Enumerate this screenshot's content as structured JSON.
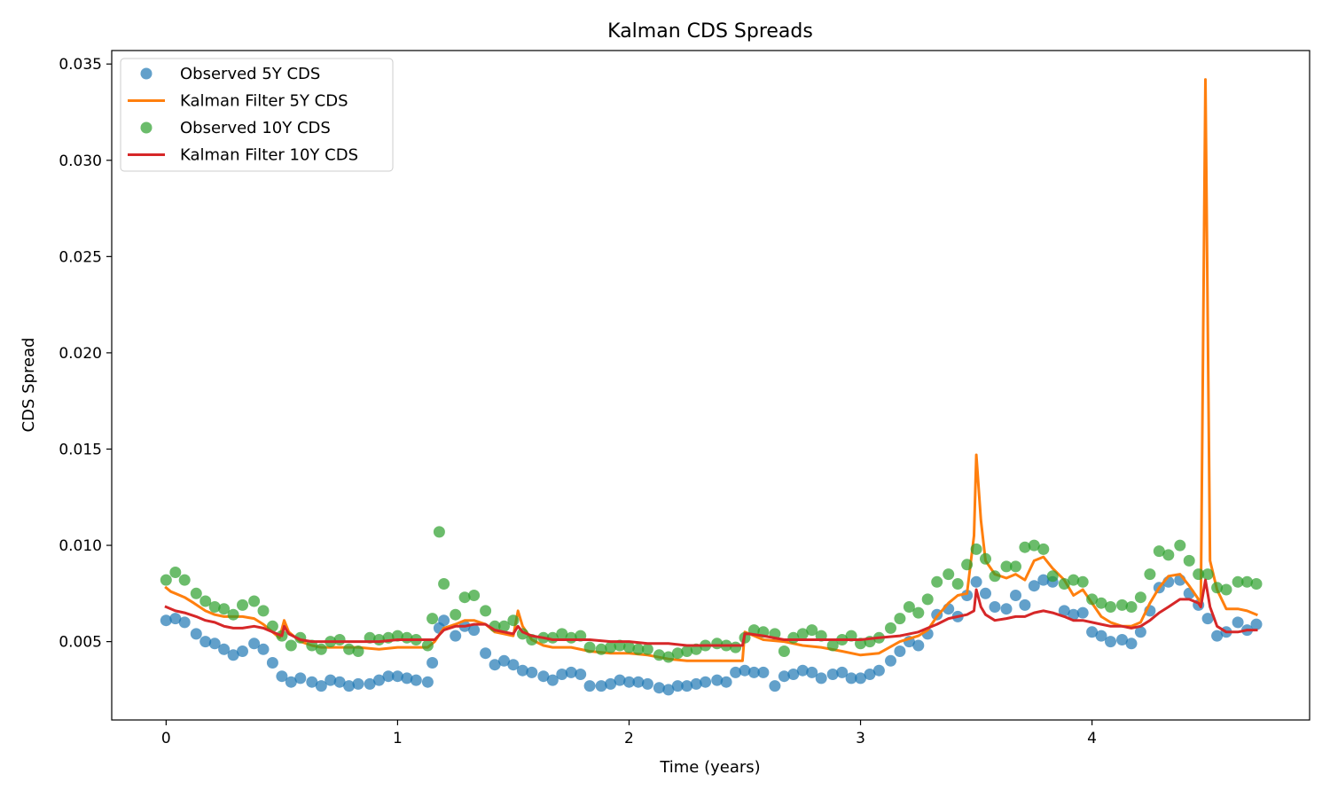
{
  "chart_data": {
    "type": "line",
    "title": "Kalman CDS Spreads",
    "xlabel": "Time (years)",
    "ylabel": "CDS Spread",
    "xlim": [
      -0.235,
      4.94
    ],
    "ylim": [
      0.00093,
      0.0357
    ],
    "xticks": [
      0,
      1,
      2,
      3,
      4
    ],
    "xtick_labels": [
      "0",
      "1",
      "2",
      "3",
      "4"
    ],
    "yticks": [
      0.005,
      0.01,
      0.015,
      0.02,
      0.025,
      0.03,
      0.035
    ],
    "ytick_labels": [
      "0.005",
      "0.010",
      "0.015",
      "0.020",
      "0.025",
      "0.030",
      "0.035"
    ],
    "grid": false,
    "legend_position": "upper-left",
    "series": [
      {
        "name": "Observed 5Y CDS",
        "kind": "scatter",
        "color": "#1f77b4",
        "x": [
          0.0,
          0.04,
          0.08,
          0.13,
          0.17,
          0.21,
          0.25,
          0.29,
          0.33,
          0.38,
          0.42,
          0.46,
          0.5,
          0.54,
          0.58,
          0.63,
          0.67,
          0.71,
          0.75,
          0.79,
          0.83,
          0.88,
          0.92,
          0.96,
          1.0,
          1.04,
          1.08,
          1.13,
          1.15,
          1.18,
          1.2,
          1.25,
          1.29,
          1.33,
          1.38,
          1.42,
          1.46,
          1.5,
          1.54,
          1.58,
          1.63,
          1.67,
          1.71,
          1.75,
          1.79,
          1.83,
          1.88,
          1.92,
          1.96,
          2.0,
          2.04,
          2.08,
          2.13,
          2.17,
          2.21,
          2.25,
          2.29,
          2.33,
          2.38,
          2.42,
          2.46,
          2.5,
          2.54,
          2.58,
          2.63,
          2.67,
          2.71,
          2.75,
          2.79,
          2.83,
          2.88,
          2.92,
          2.96,
          3.0,
          3.04,
          3.08,
          3.13,
          3.17,
          3.21,
          3.25,
          3.29,
          3.33,
          3.38,
          3.42,
          3.46,
          3.5,
          3.54,
          3.58,
          3.63,
          3.67,
          3.71,
          3.75,
          3.79,
          3.83,
          3.88,
          3.92,
          3.96,
          4.0,
          4.04,
          4.08,
          4.13,
          4.17,
          4.21,
          4.25,
          4.29,
          4.33,
          4.38,
          4.42,
          4.46,
          4.5,
          4.54,
          4.58,
          4.63,
          4.67,
          4.71
        ],
        "y": [
          0.0061,
          0.0062,
          0.006,
          0.0054,
          0.005,
          0.0049,
          0.0046,
          0.0043,
          0.0045,
          0.0049,
          0.0046,
          0.0039,
          0.0032,
          0.0029,
          0.0031,
          0.0029,
          0.0027,
          0.003,
          0.0029,
          0.0027,
          0.0028,
          0.0028,
          0.003,
          0.0032,
          0.0032,
          0.0031,
          0.003,
          0.0029,
          0.0039,
          0.0057,
          0.0061,
          0.0053,
          0.0058,
          0.0056,
          0.0044,
          0.0038,
          0.004,
          0.0038,
          0.0035,
          0.0034,
          0.0032,
          0.003,
          0.0033,
          0.0034,
          0.0033,
          0.0027,
          0.0027,
          0.0028,
          0.003,
          0.0029,
          0.0029,
          0.0028,
          0.0026,
          0.0025,
          0.0027,
          0.0027,
          0.0028,
          0.0029,
          0.003,
          0.0029,
          0.0034,
          0.0035,
          0.0034,
          0.0034,
          0.0027,
          0.0032,
          0.0033,
          0.0035,
          0.0034,
          0.0031,
          0.0033,
          0.0034,
          0.0031,
          0.0031,
          0.0033,
          0.0035,
          0.004,
          0.0045,
          0.005,
          0.0048,
          0.0054,
          0.0064,
          0.0067,
          0.0063,
          0.0074,
          0.0081,
          0.0075,
          0.0068,
          0.0067,
          0.0074,
          0.0069,
          0.0079,
          0.0082,
          0.0081,
          0.0066,
          0.0064,
          0.0065,
          0.0055,
          0.0053,
          0.005,
          0.0051,
          0.0049,
          0.0055,
          0.0066,
          0.0078,
          0.0081,
          0.0082,
          0.0075,
          0.0069,
          0.0062,
          0.0053,
          0.0055,
          0.006,
          0.0056,
          0.0059
        ]
      },
      {
        "name": "Kalman Filter 5Y CDS",
        "kind": "line",
        "color": "#ff7f0e",
        "x": [
          0.0,
          0.02,
          0.04,
          0.08,
          0.12,
          0.17,
          0.21,
          0.25,
          0.29,
          0.33,
          0.38,
          0.42,
          0.46,
          0.49,
          0.51,
          0.53,
          0.58,
          0.63,
          0.67,
          0.75,
          0.83,
          0.92,
          1.0,
          1.08,
          1.13,
          1.16,
          1.2,
          1.25,
          1.29,
          1.33,
          1.38,
          1.42,
          1.46,
          1.5,
          1.52,
          1.54,
          1.58,
          1.63,
          1.67,
          1.75,
          1.83,
          1.92,
          2.0,
          2.08,
          2.17,
          2.25,
          2.33,
          2.42,
          2.49,
          2.5,
          2.52,
          2.58,
          2.67,
          2.75,
          2.83,
          2.92,
          3.0,
          3.08,
          3.17,
          3.25,
          3.29,
          3.33,
          3.38,
          3.42,
          3.46,
          3.49,
          3.5,
          3.52,
          3.54,
          3.58,
          3.63,
          3.67,
          3.71,
          3.75,
          3.79,
          3.83,
          3.88,
          3.92,
          3.96,
          4.0,
          4.04,
          4.08,
          4.13,
          4.17,
          4.21,
          4.25,
          4.29,
          4.33,
          4.38,
          4.42,
          4.46,
          4.47,
          4.49,
          4.51,
          4.54,
          4.58,
          4.63,
          4.67,
          4.71
        ],
        "y": [
          0.0078,
          0.0076,
          0.0075,
          0.0073,
          0.007,
          0.0066,
          0.0064,
          0.0063,
          0.0063,
          0.0063,
          0.0062,
          0.0059,
          0.0055,
          0.0052,
          0.0061,
          0.0055,
          0.005,
          0.0048,
          0.0047,
          0.0047,
          0.0047,
          0.0046,
          0.0047,
          0.0047,
          0.0047,
          0.005,
          0.0057,
          0.0059,
          0.0061,
          0.0061,
          0.0059,
          0.0055,
          0.0054,
          0.0053,
          0.0066,
          0.0058,
          0.0051,
          0.0048,
          0.0047,
          0.0047,
          0.0045,
          0.0044,
          0.0044,
          0.0043,
          0.0041,
          0.004,
          0.004,
          0.004,
          0.004,
          0.0055,
          0.0054,
          0.0051,
          0.005,
          0.0048,
          0.0047,
          0.0045,
          0.0043,
          0.0044,
          0.005,
          0.0053,
          0.0056,
          0.0063,
          0.007,
          0.0074,
          0.0075,
          0.0105,
          0.0147,
          0.0113,
          0.0092,
          0.0085,
          0.0083,
          0.0085,
          0.0082,
          0.0092,
          0.0094,
          0.0088,
          0.0082,
          0.0074,
          0.0077,
          0.007,
          0.0063,
          0.006,
          0.0058,
          0.0058,
          0.006,
          0.007,
          0.0078,
          0.0084,
          0.0085,
          0.0079,
          0.0072,
          0.007,
          0.0342,
          0.0092,
          0.0077,
          0.0067,
          0.0067,
          0.0066,
          0.0064
        ]
      },
      {
        "name": "Observed 10Y CDS",
        "kind": "scatter",
        "color": "#2ca02c",
        "x": [
          0.0,
          0.04,
          0.08,
          0.13,
          0.17,
          0.21,
          0.25,
          0.29,
          0.33,
          0.38,
          0.42,
          0.46,
          0.5,
          0.54,
          0.58,
          0.63,
          0.67,
          0.71,
          0.75,
          0.79,
          0.83,
          0.88,
          0.92,
          0.96,
          1.0,
          1.04,
          1.08,
          1.13,
          1.15,
          1.18,
          1.2,
          1.25,
          1.29,
          1.33,
          1.38,
          1.42,
          1.46,
          1.5,
          1.54,
          1.58,
          1.63,
          1.67,
          1.71,
          1.75,
          1.79,
          1.83,
          1.88,
          1.92,
          1.96,
          2.0,
          2.04,
          2.08,
          2.13,
          2.17,
          2.21,
          2.25,
          2.29,
          2.33,
          2.38,
          2.42,
          2.46,
          2.5,
          2.54,
          2.58,
          2.63,
          2.67,
          2.71,
          2.75,
          2.79,
          2.83,
          2.88,
          2.92,
          2.96,
          3.0,
          3.04,
          3.08,
          3.13,
          3.17,
          3.21,
          3.25,
          3.29,
          3.33,
          3.38,
          3.42,
          3.46,
          3.5,
          3.54,
          3.58,
          3.63,
          3.67,
          3.71,
          3.75,
          3.79,
          3.83,
          3.88,
          3.92,
          3.96,
          4.0,
          4.04,
          4.08,
          4.13,
          4.17,
          4.21,
          4.25,
          4.29,
          4.33,
          4.38,
          4.42,
          4.46,
          4.5,
          4.54,
          4.58,
          4.63,
          4.67,
          4.71
        ],
        "y": [
          0.0082,
          0.0086,
          0.0082,
          0.0075,
          0.0071,
          0.0068,
          0.0067,
          0.0064,
          0.0069,
          0.0071,
          0.0066,
          0.0058,
          0.0053,
          0.0048,
          0.0052,
          0.0048,
          0.0046,
          0.005,
          0.0051,
          0.0046,
          0.0045,
          0.0052,
          0.0051,
          0.0052,
          0.0053,
          0.0052,
          0.0051,
          0.0048,
          0.0062,
          0.0107,
          0.008,
          0.0064,
          0.0073,
          0.0074,
          0.0066,
          0.0058,
          0.0058,
          0.0061,
          0.0054,
          0.0051,
          0.0052,
          0.0052,
          0.0054,
          0.0052,
          0.0053,
          0.0047,
          0.0046,
          0.0047,
          0.0048,
          0.0047,
          0.0046,
          0.0046,
          0.0043,
          0.0042,
          0.0044,
          0.0045,
          0.0046,
          0.0048,
          0.0049,
          0.0048,
          0.0047,
          0.0052,
          0.0056,
          0.0055,
          0.0054,
          0.0045,
          0.0052,
          0.0054,
          0.0056,
          0.0053,
          0.0048,
          0.0051,
          0.0053,
          0.0049,
          0.005,
          0.0052,
          0.0057,
          0.0062,
          0.0068,
          0.0065,
          0.0072,
          0.0081,
          0.0085,
          0.008,
          0.009,
          0.0098,
          0.0093,
          0.0084,
          0.0089,
          0.0089,
          0.0099,
          0.01,
          0.0098,
          0.0084,
          0.008,
          0.0082,
          0.0081,
          0.0072,
          0.007,
          0.0068,
          0.0069,
          0.0068,
          0.0073,
          0.0085,
          0.0097,
          0.0095,
          0.01,
          0.0092,
          0.0085,
          0.0085,
          0.0078,
          0.0077,
          0.0081,
          0.0081,
          0.008
        ]
      },
      {
        "name": "Kalman Filter 10Y CDS",
        "kind": "line",
        "color": "#d62728",
        "x": [
          0.0,
          0.04,
          0.08,
          0.13,
          0.17,
          0.21,
          0.25,
          0.29,
          0.33,
          0.38,
          0.42,
          0.46,
          0.5,
          0.51,
          0.53,
          0.58,
          0.63,
          0.67,
          0.75,
          0.83,
          0.92,
          1.0,
          1.08,
          1.13,
          1.16,
          1.2,
          1.25,
          1.29,
          1.33,
          1.38,
          1.42,
          1.46,
          1.5,
          1.52,
          1.54,
          1.58,
          1.63,
          1.67,
          1.75,
          1.83,
          1.92,
          2.0,
          2.08,
          2.17,
          2.25,
          2.33,
          2.42,
          2.49,
          2.5,
          2.52,
          2.58,
          2.67,
          2.75,
          2.83,
          2.92,
          3.0,
          3.08,
          3.17,
          3.25,
          3.29,
          3.33,
          3.38,
          3.42,
          3.46,
          3.49,
          3.5,
          3.52,
          3.54,
          3.58,
          3.63,
          3.67,
          3.71,
          3.75,
          3.79,
          3.83,
          3.88,
          3.92,
          3.96,
          4.0,
          4.04,
          4.08,
          4.13,
          4.17,
          4.21,
          4.25,
          4.29,
          4.33,
          4.38,
          4.42,
          4.46,
          4.47,
          4.49,
          4.51,
          4.54,
          4.58,
          4.63,
          4.67,
          4.71
        ],
        "y": [
          0.0068,
          0.0066,
          0.0065,
          0.0063,
          0.0061,
          0.006,
          0.0058,
          0.0057,
          0.0057,
          0.0058,
          0.0057,
          0.0055,
          0.0053,
          0.0058,
          0.0054,
          0.0051,
          0.005,
          0.005,
          0.005,
          0.005,
          0.005,
          0.0051,
          0.0051,
          0.0051,
          0.0051,
          0.0056,
          0.0058,
          0.0058,
          0.0059,
          0.0059,
          0.0056,
          0.0055,
          0.0054,
          0.0058,
          0.0055,
          0.0053,
          0.0052,
          0.0051,
          0.0051,
          0.0051,
          0.005,
          0.005,
          0.0049,
          0.0049,
          0.0048,
          0.0048,
          0.0048,
          0.0048,
          0.0054,
          0.0054,
          0.0053,
          0.0051,
          0.0051,
          0.0051,
          0.0051,
          0.0051,
          0.0052,
          0.0053,
          0.0055,
          0.0057,
          0.0059,
          0.0062,
          0.0063,
          0.0064,
          0.0066,
          0.0077,
          0.0068,
          0.0064,
          0.0061,
          0.0062,
          0.0063,
          0.0063,
          0.0065,
          0.0066,
          0.0065,
          0.0063,
          0.0061,
          0.0061,
          0.006,
          0.0059,
          0.0058,
          0.0058,
          0.0057,
          0.0058,
          0.0061,
          0.0065,
          0.0068,
          0.0072,
          0.0072,
          0.007,
          0.0068,
          0.0082,
          0.0068,
          0.0058,
          0.0055,
          0.0055,
          0.0056,
          0.0056
        ]
      }
    ]
  }
}
